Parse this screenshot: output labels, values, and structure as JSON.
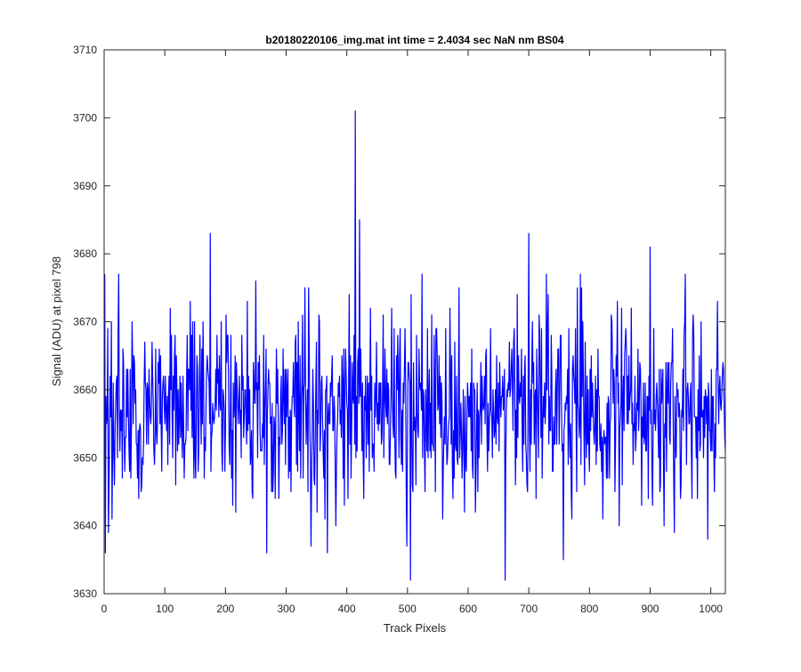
{
  "chart_data": {
    "type": "line",
    "title": "b20180220106_img.mat int time = 2.4034 sec  NaN nm BS04",
    "xlabel": "Track Pixels",
    "ylabel": "Signal (ADU) at pixel 798",
    "xlim": [
      0,
      1024
    ],
    "ylim": [
      3630,
      3710
    ],
    "xticks": [
      0,
      100,
      200,
      300,
      400,
      500,
      600,
      700,
      800,
      900,
      1000
    ],
    "yticks": [
      3630,
      3640,
      3650,
      3660,
      3670,
      3680,
      3690,
      3700,
      3710
    ],
    "grid": false,
    "series": [
      {
        "color": "#0000ff",
        "x_start": 1,
        "x_step": 1,
        "peaks": [
          {
            "x": 2,
            "y": 3636
          },
          {
            "x": 175,
            "y": 3683
          },
          {
            "x": 268,
            "y": 3636
          },
          {
            "x": 368,
            "y": 3636
          },
          {
            "x": 414,
            "y": 3701
          },
          {
            "x": 421,
            "y": 3685
          },
          {
            "x": 505,
            "y": 3632
          },
          {
            "x": 661,
            "y": 3632
          },
          {
            "x": 700,
            "y": 3683
          },
          {
            "x": 757,
            "y": 3635
          },
          {
            "x": 900,
            "y": 3681
          }
        ],
        "baseline": 3657,
        "spread": 7
      }
    ]
  }
}
